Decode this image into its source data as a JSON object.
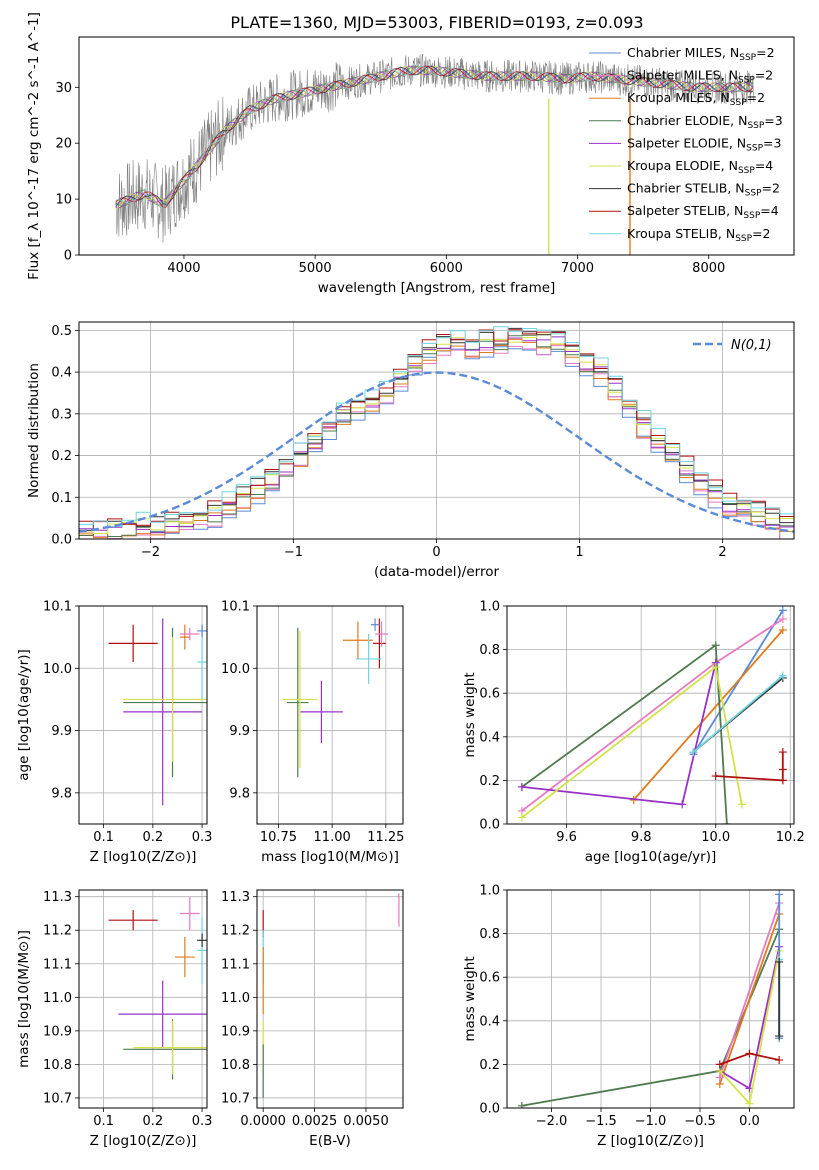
{
  "figure_title": "PLATE=1360, MJD=53003, FIBERID=0193, z=0.093",
  "legend_entries": [
    {
      "label": "Chabrier MILES, N",
      "sub": "SSP",
      "tail": "=2",
      "color": "#5b8bd6"
    },
    {
      "label": "Salpeter MILES, N",
      "sub": "SSP",
      "tail": "=2",
      "color": "#e87ac1"
    },
    {
      "label": "Kroupa MILES, N",
      "sub": "SSP",
      "tail": "=2",
      "color": "#e07b1c"
    },
    {
      "label": "Chabrier ELODIE, N",
      "sub": "SSP",
      "tail": "=3",
      "color": "#4f7a4f"
    },
    {
      "label": "Salpeter ELODIE, N",
      "sub": "SSP",
      "tail": "=3",
      "color": "#9b30c8"
    },
    {
      "label": "Kroupa ELODIE, N",
      "sub": "SSP",
      "tail": "=4",
      "color": "#d4e24a"
    },
    {
      "label": "Chabrier STELIB, N",
      "sub": "SSP",
      "tail": "=2",
      "color": "#333333"
    },
    {
      "label": "Salpeter STELIB, N",
      "sub": "SSP",
      "tail": "=4",
      "color": "#b01010"
    },
    {
      "label": "Kroupa STELIB, N",
      "sub": "SSP",
      "tail": "=2",
      "color": "#6fd3e0"
    }
  ],
  "chart_data": [
    {
      "type": "line",
      "name": "spectrum",
      "xlabel": "wavelength [Angstrom, rest frame]",
      "ylabel": "Flux [f_λ 10^-17 erg cm^-2 s^-1 A^-1]",
      "xlim": [
        3200,
        8650
      ],
      "ylim": [
        0,
        39
      ],
      "xticks": [
        4000,
        5000,
        6000,
        7000,
        8000
      ],
      "yticks": [
        0,
        10,
        20,
        30
      ],
      "grid": false,
      "legend_position": "top-right",
      "data_color": "#808080",
      "model_trend": [
        [
          3480,
          9
        ],
        [
          3700,
          11
        ],
        [
          3850,
          9
        ],
        [
          3950,
          12
        ],
        [
          4100,
          16
        ],
        [
          4300,
          22
        ],
        [
          4500,
          26
        ],
        [
          4700,
          28
        ],
        [
          4900,
          29
        ],
        [
          5100,
          30
        ],
        [
          5300,
          31
        ],
        [
          5500,
          32
        ],
        [
          5700,
          33
        ],
        [
          5900,
          33
        ],
        [
          6100,
          32.5
        ],
        [
          6300,
          32
        ],
        [
          6500,
          32
        ],
        [
          6700,
          32
        ],
        [
          6900,
          31.5
        ],
        [
          7100,
          32
        ],
        [
          7300,
          31.5
        ],
        [
          7500,
          31
        ],
        [
          7700,
          30.5
        ],
        [
          7900,
          30
        ],
        [
          8100,
          30
        ],
        [
          8350,
          30
        ]
      ],
      "vertical_lines": [
        {
          "x": 6780,
          "color": "#d4e24a"
        },
        {
          "x": 7400,
          "color": "#e07b1c"
        }
      ]
    },
    {
      "type": "bar",
      "name": "residual histogram",
      "xlabel": "(data-model)/error",
      "ylabel": "Normed distribution",
      "xlim": [
        -2.5,
        2.5
      ],
      "ylim": [
        0,
        0.52
      ],
      "xticks": [
        -2,
        -1,
        0,
        1,
        2
      ],
      "yticks": [
        0.0,
        0.1,
        0.2,
        0.3,
        0.4,
        0.5
      ],
      "grid": true,
      "legend_position": "top-right",
      "reference_curve": {
        "label": "N(0,1)",
        "color": "#5b8bd6",
        "mean": 0,
        "sd": 1,
        "style": "dashed"
      },
      "bin_width": 0.1,
      "histogram_profile": [
        0.02,
        0.02,
        0.02,
        0.03,
        0.03,
        0.03,
        0.04,
        0.04,
        0.05,
        0.06,
        0.08,
        0.1,
        0.12,
        0.14,
        0.17,
        0.2,
        0.23,
        0.27,
        0.3,
        0.32,
        0.33,
        0.35,
        0.38,
        0.42,
        0.45,
        0.46,
        0.47,
        0.46,
        0.47,
        0.47,
        0.48,
        0.48,
        0.47,
        0.47,
        0.45,
        0.42,
        0.4,
        0.36,
        0.32,
        0.27,
        0.23,
        0.2,
        0.17,
        0.14,
        0.11,
        0.08,
        0.07,
        0.06,
        0.04,
        0.03
      ]
    },
    {
      "type": "scatter",
      "name": "age vs metallicity",
      "xlabel": "Z [log10(Z/Z⊙)]",
      "ylabel": "age [log10(age/yr)]",
      "xlim": [
        0.05,
        0.31
      ],
      "ylim": [
        9.75,
        10.1
      ],
      "xticks": [
        0.1,
        0.2,
        0.3
      ],
      "yticks": [
        9.8,
        9.9,
        10.0,
        10.1
      ],
      "grid": true,
      "points": [
        {
          "x": 0.16,
          "y": 10.04,
          "xerr": 0.05,
          "yerr": 0.03,
          "color": "#b01010"
        },
        {
          "x": 0.265,
          "y": 10.05,
          "xerr": 0.01,
          "yerr": 0.02,
          "color": "#e07b1c"
        },
        {
          "x": 0.275,
          "y": 10.055,
          "xerr": 0.02,
          "yerr": 0.01,
          "color": "#e87ac1"
        },
        {
          "x": 0.3,
          "y": 10.01,
          "xerr": 0.01,
          "yerr": 0.06,
          "color": "#6fd3e0"
        },
        {
          "x": 0.3,
          "y": 10.06,
          "xerr": 0.01,
          "yerr": 0.01,
          "color": "#5b8bd6"
        },
        {
          "x": 0.22,
          "y": 9.93,
          "xerr": 0.08,
          "yerr": 0.15,
          "color": "#9b30c8"
        },
        {
          "x": 0.24,
          "y": 9.945,
          "xerr": 0.1,
          "yerr": 0.12,
          "color": "#4f7a4f"
        },
        {
          "x": 0.24,
          "y": 9.95,
          "xerr": 0.1,
          "yerr": 0.1,
          "color": "#d4e24a"
        }
      ]
    },
    {
      "type": "scatter",
      "name": "age vs mass",
      "xlabel": "mass [log10(M/M⊙)]",
      "ylabel": "",
      "xlim": [
        10.65,
        11.33
      ],
      "ylim": [
        9.75,
        10.1
      ],
      "xticks": [
        10.75,
        11.0,
        11.25
      ],
      "yticks": [
        9.8,
        9.9,
        10.0,
        10.1
      ],
      "grid": true,
      "points": [
        {
          "x": 11.22,
          "y": 10.04,
          "xerr": 0.03,
          "yerr": 0.04,
          "color": "#b01010"
        },
        {
          "x": 11.12,
          "y": 10.045,
          "xerr": 0.07,
          "yerr": 0.03,
          "color": "#e07b1c"
        },
        {
          "x": 11.23,
          "y": 10.055,
          "xerr": 0.03,
          "yerr": 0.02,
          "color": "#e87ac1"
        },
        {
          "x": 11.17,
          "y": 10.015,
          "xerr": 0.06,
          "yerr": 0.04,
          "color": "#6fd3e0"
        },
        {
          "x": 11.2,
          "y": 10.07,
          "xerr": 0.02,
          "yerr": 0.01,
          "color": "#5b8bd6"
        },
        {
          "x": 10.95,
          "y": 9.93,
          "xerr": 0.1,
          "yerr": 0.05,
          "color": "#9b30c8"
        },
        {
          "x": 10.84,
          "y": 9.945,
          "xerr": 0.05,
          "yerr": 0.12,
          "color": "#4f7a4f"
        },
        {
          "x": 10.85,
          "y": 9.95,
          "xerr": 0.08,
          "yerr": 0.11,
          "color": "#d4e24a"
        }
      ]
    },
    {
      "type": "line",
      "name": "mass weight vs age",
      "xlabel": "age [log10(age/yr)]",
      "ylabel": "mass weight",
      "xlim": [
        9.44,
        10.21
      ],
      "ylim": [
        0,
        1
      ],
      "xticks": [
        9.6,
        9.8,
        10.0,
        10.2
      ],
      "yticks": [
        0.0,
        0.2,
        0.4,
        0.6,
        0.8,
        1.0
      ],
      "grid": true,
      "series": [
        {
          "color": "#5b8bd6",
          "points": [
            [
              9.94,
              0.32
            ],
            [
              10.18,
              0.98
            ]
          ]
        },
        {
          "color": "#e87ac1",
          "points": [
            [
              9.48,
              0.06
            ],
            [
              10.0,
              0.74
            ],
            [
              10.18,
              0.94
            ]
          ]
        },
        {
          "color": "#e07b1c",
          "points": [
            [
              9.78,
              0.11
            ],
            [
              10.18,
              0.89
            ]
          ]
        },
        {
          "color": "#4f7a4f",
          "points": [
            [
              9.48,
              0.17
            ],
            [
              10.0,
              0.82
            ],
            [
              10.03,
              0.0
            ]
          ]
        },
        {
          "color": "#9b30c8",
          "points": [
            [
              9.48,
              0.17
            ],
            [
              9.91,
              0.09
            ],
            [
              10.0,
              0.74
            ]
          ]
        },
        {
          "color": "#d4e24a",
          "points": [
            [
              9.48,
              0.03
            ],
            [
              10.0,
              0.72
            ],
            [
              10.07,
              0.09
            ]
          ]
        },
        {
          "color": "#333333",
          "points": [
            [
              9.94,
              0.33
            ],
            [
              10.18,
              0.67
            ]
          ]
        },
        {
          "color": "#b01010",
          "points": [
            [
              10.0,
              0.22
            ],
            [
              10.18,
              0.2
            ],
            [
              10.18,
              0.25
            ],
            [
              10.18,
              0.33
            ]
          ]
        },
        {
          "color": "#6fd3e0",
          "points": [
            [
              9.94,
              0.33
            ],
            [
              10.18,
              0.68
            ]
          ]
        }
      ]
    },
    {
      "type": "scatter",
      "name": "mass vs metallicity",
      "xlabel": "Z [log10(Z/Z⊙)]",
      "ylabel": "mass [log10(M/M⊙)]",
      "xlim": [
        0.05,
        0.31
      ],
      "ylim": [
        10.67,
        11.32
      ],
      "xticks": [
        0.1,
        0.2,
        0.3
      ],
      "yticks": [
        10.7,
        10.8,
        10.9,
        11.0,
        11.1,
        11.2,
        11.3
      ],
      "grid": true,
      "points": [
        {
          "x": 0.16,
          "y": 11.23,
          "xerr": 0.05,
          "yerr": 0.03,
          "color": "#b01010"
        },
        {
          "x": 0.265,
          "y": 11.12,
          "xerr": 0.02,
          "yerr": 0.06,
          "color": "#e07b1c"
        },
        {
          "x": 0.275,
          "y": 11.25,
          "xerr": 0.02,
          "yerr": 0.05,
          "color": "#e87ac1"
        },
        {
          "x": 0.3,
          "y": 11.14,
          "xerr": 0.01,
          "yerr": 0.1,
          "color": "#6fd3e0"
        },
        {
          "x": 0.3,
          "y": 11.17,
          "xerr": 0.01,
          "yerr": 0.02,
          "color": "#333333"
        },
        {
          "x": 0.22,
          "y": 10.95,
          "xerr": 0.09,
          "yerr": 0.1,
          "color": "#9b30c8"
        },
        {
          "x": 0.24,
          "y": 10.845,
          "xerr": 0.1,
          "yerr": 0.09,
          "color": "#4f7a4f"
        },
        {
          "x": 0.24,
          "y": 10.85,
          "xerr": 0.08,
          "yerr": 0.08,
          "color": "#d4e24a"
        }
      ]
    },
    {
      "type": "scatter",
      "name": "mass vs extinction",
      "xlabel": "E(B-V)",
      "ylabel": "",
      "xlim": [
        -0.0003,
        0.0068
      ],
      "ylim": [
        10.67,
        11.32
      ],
      "xticks": [
        0.0,
        0.0025,
        0.005
      ],
      "xtick_labels": [
        "0.0000",
        "0.0025",
        "0.0050"
      ],
      "yticks": [
        10.7,
        10.8,
        10.9,
        11.0,
        11.1,
        11.2,
        11.3
      ],
      "grid": true,
      "points": [
        {
          "x": 0.0066,
          "y": 11.26,
          "xerr": 0.0,
          "yerr": 0.05,
          "color": "#e87ac1"
        },
        {
          "x": 0.0,
          "y": 11.22,
          "xerr": 0.0,
          "yerr": 0.04,
          "color": "#b01010"
        },
        {
          "x": 0.0,
          "y": 11.12,
          "xerr": 0.0,
          "yerr": 0.08,
          "color": "#6fd3e0"
        },
        {
          "x": 0.0,
          "y": 11.05,
          "xerr": 0.0,
          "yerr": 0.1,
          "color": "#e07b1c"
        },
        {
          "x": 0.0,
          "y": 10.85,
          "xerr": 0.0,
          "yerr": 0.08,
          "color": "#d4e24a"
        },
        {
          "x": 0.0,
          "y": 10.78,
          "xerr": 0.0,
          "yerr": 0.08,
          "color": "#4f7a4f"
        }
      ]
    },
    {
      "type": "line",
      "name": "mass weight vs metallicity",
      "xlabel": "Z [log10(Z/Z⊙)]",
      "ylabel": "mass weight",
      "xlim": [
        -2.45,
        0.45
      ],
      "ylim": [
        0,
        1
      ],
      "xticks": [
        -2.0,
        -1.5,
        -1.0,
        -0.5,
        0.0
      ],
      "yticks": [
        0.0,
        0.2,
        0.4,
        0.6,
        0.8,
        1.0
      ],
      "grid": true,
      "series": [
        {
          "color": "#4f7a4f",
          "points": [
            [
              -2.3,
              0.01
            ],
            [
              -0.3,
              0.17
            ],
            [
              0.3,
              0.82
            ]
          ]
        },
        {
          "color": "#e07b1c",
          "points": [
            [
              -0.3,
              0.11
            ],
            [
              0.3,
              0.89
            ]
          ]
        },
        {
          "color": "#e87ac1",
          "points": [
            [
              -0.3,
              0.14
            ],
            [
              0.3,
              0.94
            ]
          ]
        },
        {
          "color": "#9b30c8",
          "points": [
            [
              -0.3,
              0.17
            ],
            [
              0.0,
              0.09
            ],
            [
              0.3,
              0.74
            ]
          ]
        },
        {
          "color": "#d4e24a",
          "points": [
            [
              -0.3,
              0.17
            ],
            [
              0.0,
              0.02
            ],
            [
              0.3,
              0.72
            ]
          ]
        },
        {
          "color": "#b01010",
          "points": [
            [
              -0.3,
              0.2
            ],
            [
              0.0,
              0.25
            ],
            [
              0.3,
              0.22
            ]
          ]
        },
        {
          "color": "#5b8bd6",
          "points": [
            [
              0.3,
              0.32
            ],
            [
              0.3,
              0.98
            ]
          ]
        },
        {
          "color": "#6fd3e0",
          "points": [
            [
              0.3,
              0.33
            ],
            [
              0.3,
              0.68
            ]
          ]
        },
        {
          "color": "#333333",
          "points": [
            [
              0.3,
              0.33
            ],
            [
              0.3,
              0.67
            ]
          ]
        }
      ]
    }
  ]
}
